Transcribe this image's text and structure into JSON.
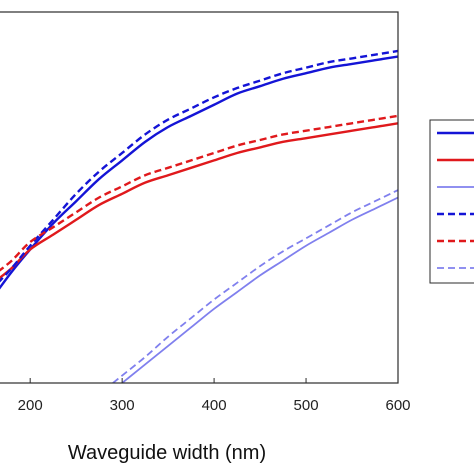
{
  "chart_data": {
    "type": "line",
    "xlabel": "Waveguide width (nm)",
    "ylabel": "",
    "title": "",
    "xlim": [
      165,
      600
    ],
    "ylim": [
      0,
      1
    ],
    "grid": false,
    "legend": {
      "placement": "right-outside",
      "labels_visible": false
    },
    "x_ticks": [
      "200",
      "300",
      "400",
      "500",
      "600"
    ],
    "x_tick_values": [
      200,
      300,
      400,
      500,
      600
    ],
    "series": [
      {
        "color": "#1414d6",
        "dash": "solid",
        "x": [
          165,
          180,
          200,
          225,
          250,
          275,
          300,
          325,
          350,
          375,
          400,
          425,
          450,
          475,
          500,
          525,
          550,
          575,
          600
        ],
        "y": [
          0.25,
          0.3,
          0.36,
          0.43,
          0.49,
          0.55,
          0.6,
          0.65,
          0.69,
          0.72,
          0.75,
          0.78,
          0.8,
          0.82,
          0.835,
          0.85,
          0.86,
          0.87,
          0.88
        ]
      },
      {
        "color": "#e0191c",
        "dash": "solid",
        "x": [
          165,
          180,
          200,
          225,
          250,
          275,
          300,
          325,
          350,
          375,
          400,
          425,
          450,
          475,
          500,
          525,
          550,
          575,
          600
        ],
        "y": [
          0.28,
          0.31,
          0.36,
          0.4,
          0.44,
          0.48,
          0.51,
          0.54,
          0.56,
          0.58,
          0.6,
          0.62,
          0.635,
          0.65,
          0.66,
          0.67,
          0.68,
          0.69,
          0.7
        ]
      },
      {
        "color": "#8080ee",
        "dash": "solid",
        "x": [
          300,
          325,
          350,
          375,
          400,
          425,
          450,
          475,
          500,
          525,
          550,
          575,
          600
        ],
        "y": [
          0.0,
          0.05,
          0.1,
          0.15,
          0.2,
          0.245,
          0.29,
          0.33,
          0.37,
          0.405,
          0.44,
          0.47,
          0.5
        ]
      },
      {
        "color": "#1414d6",
        "dash": "dashed",
        "x": [
          165,
          180,
          200,
          225,
          250,
          275,
          300,
          325,
          350,
          375,
          400,
          425,
          450,
          475,
          500,
          525,
          550,
          575,
          600
        ],
        "y": [
          0.27,
          0.31,
          0.37,
          0.44,
          0.51,
          0.57,
          0.62,
          0.67,
          0.71,
          0.74,
          0.77,
          0.795,
          0.815,
          0.835,
          0.85,
          0.865,
          0.875,
          0.885,
          0.895
        ]
      },
      {
        "color": "#e0191c",
        "dash": "dashed",
        "x": [
          165,
          180,
          200,
          225,
          250,
          275,
          300,
          325,
          350,
          375,
          400,
          425,
          450,
          475,
          500,
          525,
          550,
          575,
          600
        ],
        "y": [
          0.3,
          0.33,
          0.38,
          0.42,
          0.46,
          0.5,
          0.53,
          0.56,
          0.58,
          0.6,
          0.62,
          0.64,
          0.655,
          0.67,
          0.68,
          0.69,
          0.7,
          0.71,
          0.72
        ]
      },
      {
        "color": "#8080ee",
        "dash": "dashed",
        "x": [
          290,
          300,
          325,
          350,
          375,
          400,
          425,
          450,
          475,
          500,
          525,
          550,
          575,
          600
        ],
        "y": [
          0.0,
          0.02,
          0.07,
          0.125,
          0.175,
          0.225,
          0.27,
          0.315,
          0.355,
          0.39,
          0.425,
          0.46,
          0.49,
          0.52
        ]
      }
    ]
  }
}
